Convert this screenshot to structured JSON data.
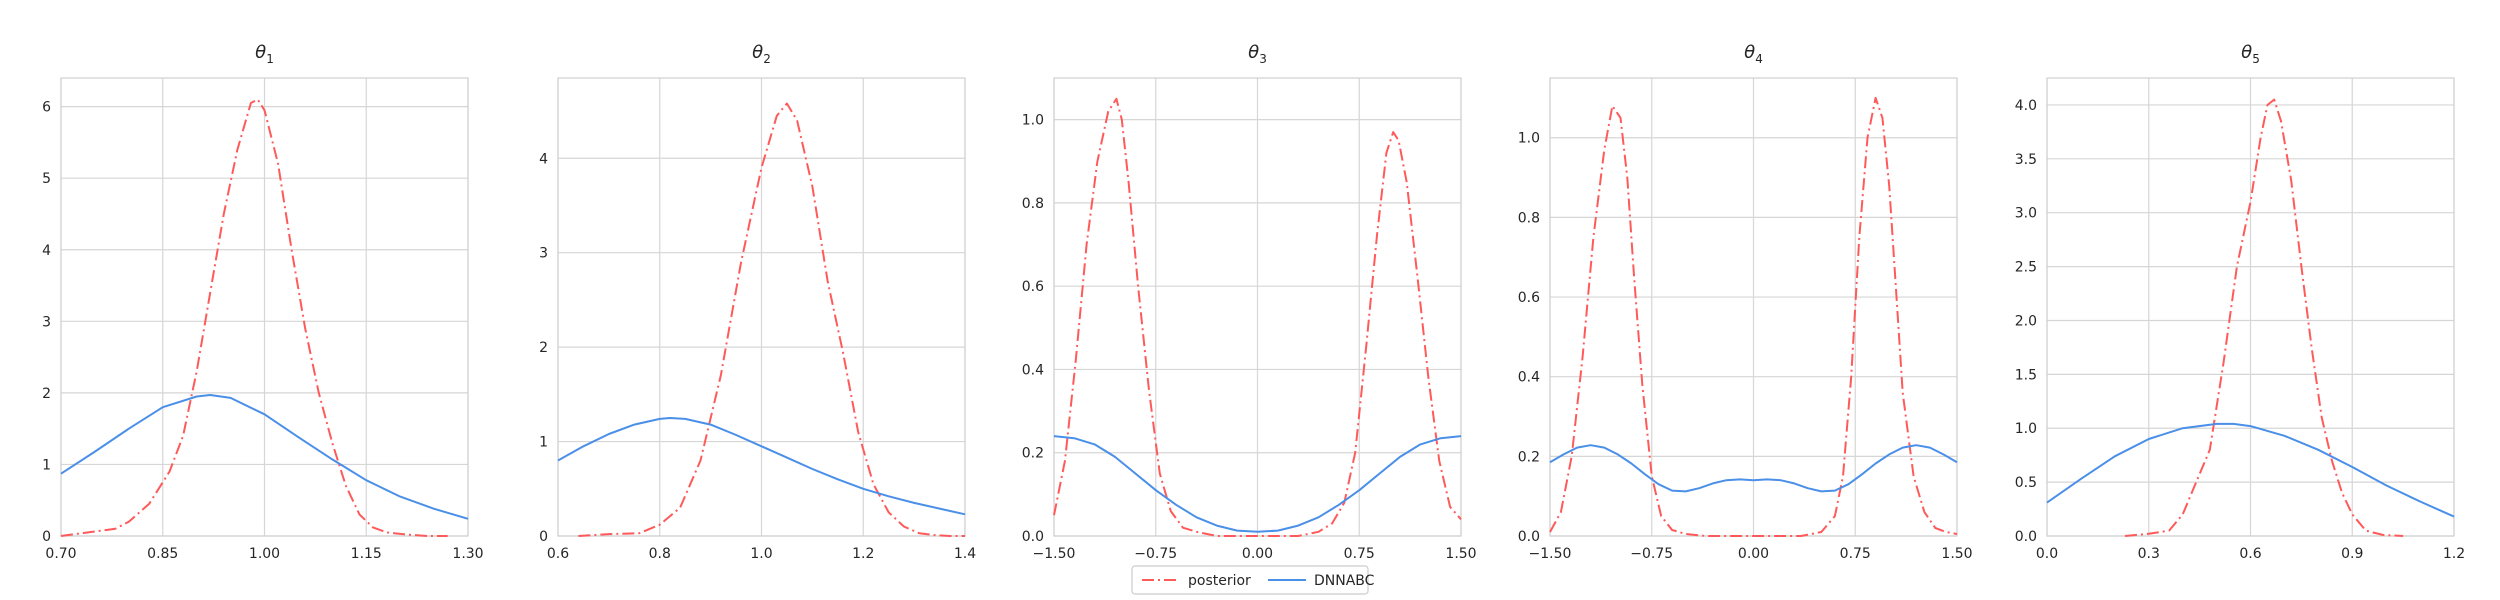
{
  "chart_data": [
    {
      "type": "line",
      "title_symbol": "θ",
      "title_sub": "1",
      "xlim": [
        0.7,
        1.3
      ],
      "ylim": [
        0,
        6.4
      ],
      "xticks": [
        "0.70",
        "0.85",
        "1.00",
        "1.15",
        "1.30"
      ],
      "xtick_values": [
        0.7,
        0.85,
        1.0,
        1.15,
        1.3
      ],
      "yticks": [
        "0",
        "1",
        "2",
        "3",
        "4",
        "5",
        "6"
      ],
      "ytick_values": [
        0,
        1,
        2,
        3,
        4,
        5,
        6
      ],
      "series": [
        {
          "name": "posterior",
          "x": [
            0.7,
            0.74,
            0.78,
            0.8,
            0.83,
            0.86,
            0.88,
            0.9,
            0.92,
            0.94,
            0.96,
            0.98,
            0.99,
            1.0,
            1.02,
            1.04,
            1.06,
            1.08,
            1.1,
            1.12,
            1.14,
            1.16,
            1.18,
            1.21,
            1.24,
            1.27
          ],
          "y": [
            0.0,
            0.05,
            0.1,
            0.2,
            0.45,
            0.9,
            1.4,
            2.3,
            3.4,
            4.5,
            5.4,
            6.05,
            6.1,
            5.95,
            5.2,
            4.0,
            2.9,
            2.0,
            1.3,
            0.7,
            0.3,
            0.12,
            0.05,
            0.02,
            0.0,
            0.0
          ]
        },
        {
          "name": "DNNABC",
          "x": [
            0.7,
            0.75,
            0.8,
            0.85,
            0.9,
            0.92,
            0.95,
            1.0,
            1.05,
            1.1,
            1.15,
            1.2,
            1.25,
            1.3
          ],
          "y": [
            0.87,
            1.18,
            1.5,
            1.8,
            1.95,
            1.97,
            1.93,
            1.7,
            1.38,
            1.07,
            0.78,
            0.55,
            0.38,
            0.24
          ]
        }
      ]
    },
    {
      "type": "line",
      "title_symbol": "θ",
      "title_sub": "2",
      "xlim": [
        0.6,
        1.4
      ],
      "ylim": [
        0,
        4.85
      ],
      "xticks": [
        "0.6",
        "0.8",
        "1.0",
        "1.2",
        "1.4"
      ],
      "xtick_values": [
        0.6,
        0.8,
        1.0,
        1.2,
        1.4
      ],
      "yticks": [
        "0",
        "1",
        "2",
        "3",
        "4"
      ],
      "ytick_values": [
        0,
        1,
        2,
        3,
        4
      ],
      "series": [
        {
          "name": "posterior",
          "x": [
            0.64,
            0.7,
            0.76,
            0.8,
            0.84,
            0.88,
            0.92,
            0.96,
            1.0,
            1.03,
            1.05,
            1.07,
            1.1,
            1.13,
            1.16,
            1.19,
            1.22,
            1.25,
            1.28,
            1.31,
            1.34,
            1.37,
            1.4
          ],
          "y": [
            0.0,
            0.02,
            0.03,
            0.12,
            0.3,
            0.8,
            1.7,
            2.9,
            3.9,
            4.45,
            4.58,
            4.4,
            3.7,
            2.7,
            1.95,
            1.1,
            0.55,
            0.25,
            0.1,
            0.03,
            0.01,
            0.0,
            0.0
          ]
        },
        {
          "name": "DNNABC",
          "x": [
            0.6,
            0.65,
            0.7,
            0.75,
            0.8,
            0.82,
            0.85,
            0.9,
            0.95,
            1.0,
            1.05,
            1.1,
            1.15,
            1.2,
            1.25,
            1.3,
            1.35,
            1.4
          ],
          "y": [
            0.8,
            0.95,
            1.08,
            1.18,
            1.24,
            1.25,
            1.24,
            1.18,
            1.07,
            0.95,
            0.83,
            0.71,
            0.6,
            0.5,
            0.42,
            0.35,
            0.29,
            0.23
          ]
        }
      ]
    },
    {
      "type": "line",
      "title_symbol": "θ",
      "title_sub": "3",
      "xlim": [
        -1.5,
        1.5
      ],
      "ylim": [
        0,
        1.1
      ],
      "xticks": [
        "−1.50",
        "−0.75",
        "0.00",
        "0.75",
        "1.50"
      ],
      "xtick_values": [
        -1.5,
        -0.75,
        0.0,
        0.75,
        1.5
      ],
      "yticks": [
        "0.0",
        "0.2",
        "0.4",
        "0.6",
        "0.8",
        "1.0"
      ],
      "ytick_values": [
        0.0,
        0.2,
        0.4,
        0.6,
        0.8,
        1.0
      ],
      "series": [
        {
          "name": "posterior",
          "x": [
            -1.5,
            -1.42,
            -1.34,
            -1.26,
            -1.18,
            -1.1,
            -1.04,
            -1.0,
            -0.95,
            -0.88,
            -0.8,
            -0.72,
            -0.64,
            -0.55,
            -0.45,
            -0.3,
            0.0,
            0.3,
            0.45,
            0.55,
            0.64,
            0.72,
            0.8,
            0.88,
            0.95,
            1.0,
            1.04,
            1.1,
            1.18,
            1.26,
            1.34,
            1.42,
            1.5
          ],
          "y": [
            0.05,
            0.18,
            0.42,
            0.7,
            0.9,
            1.02,
            1.05,
            1.0,
            0.85,
            0.6,
            0.35,
            0.15,
            0.06,
            0.02,
            0.01,
            0.0,
            0.0,
            0.0,
            0.01,
            0.03,
            0.08,
            0.2,
            0.45,
            0.72,
            0.92,
            0.97,
            0.95,
            0.85,
            0.62,
            0.38,
            0.18,
            0.07,
            0.04
          ]
        },
        {
          "name": "DNNABC",
          "x": [
            -1.5,
            -1.35,
            -1.2,
            -1.05,
            -0.9,
            -0.75,
            -0.6,
            -0.45,
            -0.3,
            -0.15,
            0.0,
            0.15,
            0.3,
            0.45,
            0.6,
            0.75,
            0.9,
            1.05,
            1.2,
            1.35,
            1.5
          ],
          "y": [
            0.24,
            0.235,
            0.22,
            0.19,
            0.15,
            0.11,
            0.075,
            0.045,
            0.025,
            0.013,
            0.01,
            0.013,
            0.025,
            0.045,
            0.075,
            0.11,
            0.15,
            0.19,
            0.22,
            0.235,
            0.24
          ]
        }
      ]
    },
    {
      "type": "line",
      "title_symbol": "θ",
      "title_sub": "4",
      "xlim": [
        -1.5,
        1.5
      ],
      "ylim": [
        0,
        1.15
      ],
      "xticks": [
        "−1.50",
        "−0.75",
        "0.00",
        "0.75",
        "1.50"
      ],
      "xtick_values": [
        -1.5,
        -0.75,
        0.0,
        0.75,
        1.5
      ],
      "yticks": [
        "0.0",
        "0.2",
        "0.4",
        "0.6",
        "0.8",
        "1.0"
      ],
      "ytick_values": [
        0.0,
        0.2,
        0.4,
        0.6,
        0.8,
        1.0
      ],
      "series": [
        {
          "name": "posterior",
          "x": [
            -1.5,
            -1.42,
            -1.34,
            -1.26,
            -1.18,
            -1.1,
            -1.04,
            -0.98,
            -0.93,
            -0.88,
            -0.82,
            -0.75,
            -0.68,
            -0.6,
            -0.5,
            -0.35,
            0.0,
            0.35,
            0.5,
            0.6,
            0.66,
            0.72,
            0.78,
            0.84,
            0.9,
            0.95,
            1.0,
            1.05,
            1.1,
            1.18,
            1.26,
            1.34,
            1.42,
            1.5
          ],
          "y": [
            0.01,
            0.06,
            0.2,
            0.45,
            0.75,
            0.97,
            1.08,
            1.05,
            0.9,
            0.65,
            0.38,
            0.15,
            0.05,
            0.015,
            0.005,
            0.0,
            0.0,
            0.0,
            0.01,
            0.05,
            0.15,
            0.4,
            0.75,
            1.0,
            1.1,
            1.05,
            0.88,
            0.62,
            0.36,
            0.15,
            0.06,
            0.02,
            0.01,
            0.005
          ]
        },
        {
          "name": "DNNABC",
          "x": [
            -1.5,
            -1.4,
            -1.3,
            -1.2,
            -1.1,
            -1.0,
            -0.9,
            -0.8,
            -0.7,
            -0.6,
            -0.5,
            -0.4,
            -0.3,
            -0.2,
            -0.1,
            0.0,
            0.1,
            0.2,
            0.3,
            0.4,
            0.5,
            0.6,
            0.7,
            0.8,
            0.9,
            1.0,
            1.1,
            1.2,
            1.3,
            1.4,
            1.5
          ],
          "y": [
            0.185,
            0.205,
            0.222,
            0.228,
            0.222,
            0.205,
            0.182,
            0.155,
            0.13,
            0.114,
            0.112,
            0.12,
            0.132,
            0.14,
            0.142,
            0.14,
            0.142,
            0.14,
            0.132,
            0.12,
            0.112,
            0.114,
            0.13,
            0.155,
            0.182,
            0.205,
            0.222,
            0.228,
            0.222,
            0.205,
            0.185
          ]
        }
      ]
    },
    {
      "type": "line",
      "title_symbol": "θ",
      "title_sub": "5",
      "xlim": [
        0.0,
        1.2
      ],
      "ylim": [
        0,
        4.25
      ],
      "xticks": [
        "0.0",
        "0.3",
        "0.6",
        "0.9",
        "1.2"
      ],
      "xtick_values": [
        0.0,
        0.3,
        0.6,
        0.9,
        1.2
      ],
      "yticks": [
        "0.0",
        "0.5",
        "1.0",
        "1.5",
        "2.0",
        "2.5",
        "3.0",
        "3.5",
        "4.0"
      ],
      "ytick_values": [
        0.0,
        0.5,
        1.0,
        1.5,
        2.0,
        2.5,
        3.0,
        3.5,
        4.0
      ],
      "series": [
        {
          "name": "posterior",
          "x": [
            0.23,
            0.3,
            0.36,
            0.4,
            0.44,
            0.48,
            0.52,
            0.56,
            0.6,
            0.63,
            0.65,
            0.67,
            0.69,
            0.72,
            0.75,
            0.78,
            0.81,
            0.84,
            0.87,
            0.9,
            0.94,
            0.99,
            1.05
          ],
          "y": [
            0.0,
            0.02,
            0.05,
            0.2,
            0.5,
            0.8,
            1.6,
            2.5,
            3.1,
            3.7,
            4.0,
            4.05,
            3.85,
            3.3,
            2.5,
            1.75,
            1.1,
            0.7,
            0.4,
            0.2,
            0.05,
            0.01,
            0.0
          ]
        },
        {
          "name": "DNNABC",
          "x": [
            0.0,
            0.1,
            0.2,
            0.3,
            0.4,
            0.5,
            0.55,
            0.6,
            0.7,
            0.8,
            0.9,
            1.0,
            1.1,
            1.2
          ],
          "y": [
            0.31,
            0.53,
            0.74,
            0.9,
            1.0,
            1.04,
            1.04,
            1.02,
            0.93,
            0.8,
            0.64,
            0.47,
            0.32,
            0.18
          ]
        }
      ]
    }
  ],
  "legend": {
    "placement": "bottom-center",
    "items": [
      {
        "label": "posterior",
        "color": "#ff5a5a",
        "style": "dashdot"
      },
      {
        "label": "DNNABC",
        "color": "#4a8fe8",
        "style": "solid"
      }
    ]
  },
  "colors": {
    "posterior": "#ff5a5a",
    "DNNABC": "#4a8fe8",
    "grid": "#d6d6d6"
  }
}
